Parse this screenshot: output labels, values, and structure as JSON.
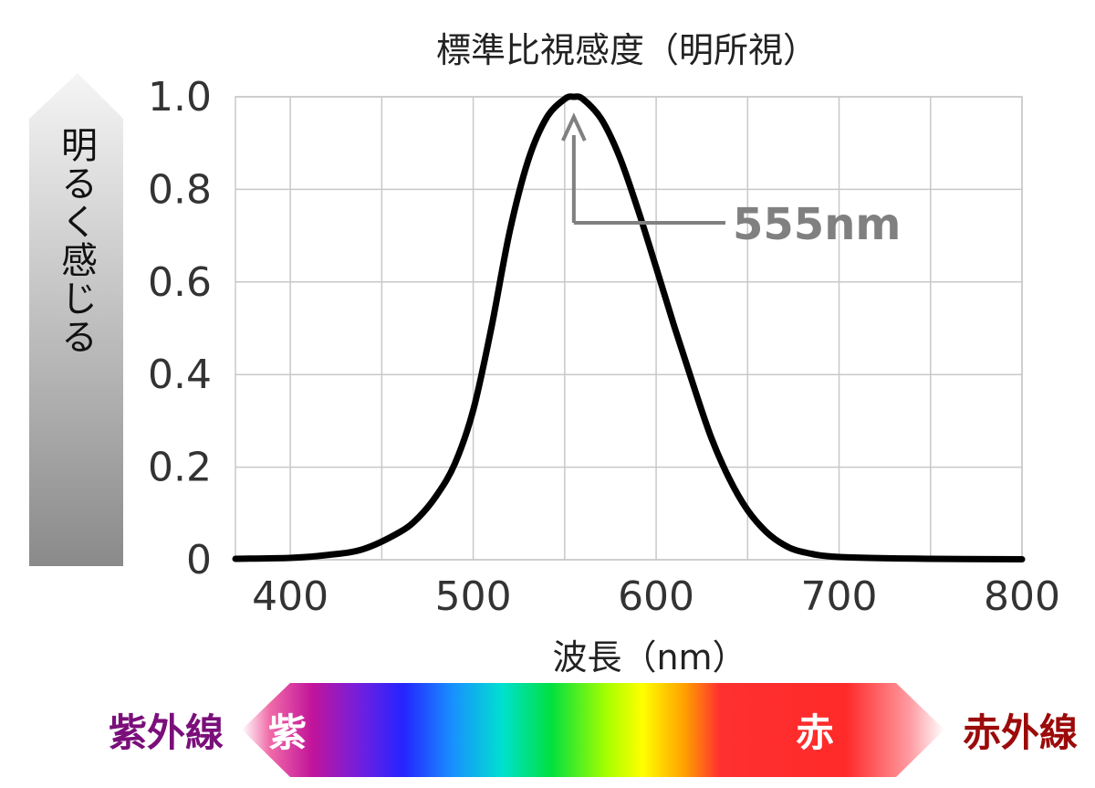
{
  "chart_data": {
    "type": "line",
    "title": "標準比視感度（明所視）",
    "xlabel": "波長（nm）",
    "ylabel": "明るく感じる",
    "xlim": [
      370,
      800
    ],
    "ylim": [
      0,
      1.0
    ],
    "x_ticks": [
      "400",
      "500",
      "600",
      "700",
      "800"
    ],
    "y_ticks": [
      "1.0",
      "0.8",
      "0.6",
      "0.4",
      "0.2",
      "0"
    ],
    "grid": true,
    "series": [
      {
        "color": "#000000",
        "x": [
          370,
          400,
          420,
          440,
          460,
          470,
          480,
          490,
          500,
          510,
          520,
          530,
          540,
          550,
          555,
          560,
          570,
          580,
          590,
          600,
          610,
          620,
          630,
          640,
          650,
          660,
          670,
          680,
          700,
          750,
          800
        ],
        "y": [
          0.002,
          0.004,
          0.01,
          0.023,
          0.06,
          0.091,
          0.139,
          0.208,
          0.323,
          0.503,
          0.71,
          0.862,
          0.954,
          0.995,
          1.0,
          0.995,
          0.952,
          0.87,
          0.757,
          0.631,
          0.503,
          0.381,
          0.265,
          0.175,
          0.107,
          0.061,
          0.032,
          0.017,
          0.006,
          0.002,
          0.001
        ]
      }
    ],
    "annotations": [
      {
        "text": "555nm",
        "x": 555,
        "y": 1.0,
        "color": "#808080"
      }
    ]
  },
  "spectrum_bar": {
    "left_outer_label": "紫外線",
    "left_inner_label": "紫",
    "right_inner_label": "赤",
    "right_outer_label": "赤外線",
    "left_color": "#7a0f7a",
    "right_color": "#9c0a0a"
  },
  "colors": {
    "grid": "#c8c8c8",
    "curve": "#000000",
    "annotation": "#808080",
    "arrow_top": "#f2f2f2",
    "arrow_bottom": "#8a8a8a"
  }
}
